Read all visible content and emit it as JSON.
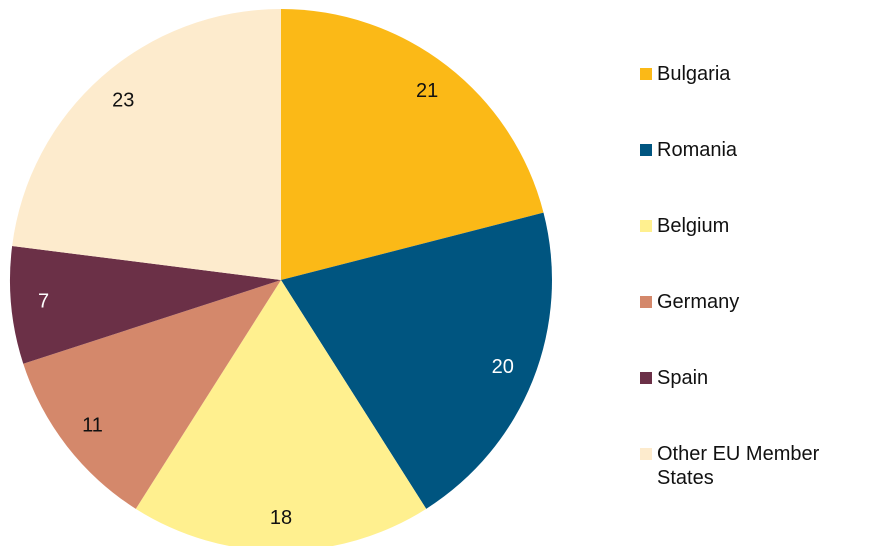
{
  "chart_data": {
    "type": "pie",
    "categories": [
      "Bulgaria",
      "Romania",
      "Belgium",
      "Germany",
      "Spain",
      "Other EU Member States"
    ],
    "values": [
      21,
      20,
      18,
      11,
      7,
      23
    ],
    "colors": [
      "#fbb917",
      "#005580",
      "#fff08f",
      "#d4886b",
      "#6b3047",
      "#fdebcd"
    ],
    "legend": "right"
  }
}
